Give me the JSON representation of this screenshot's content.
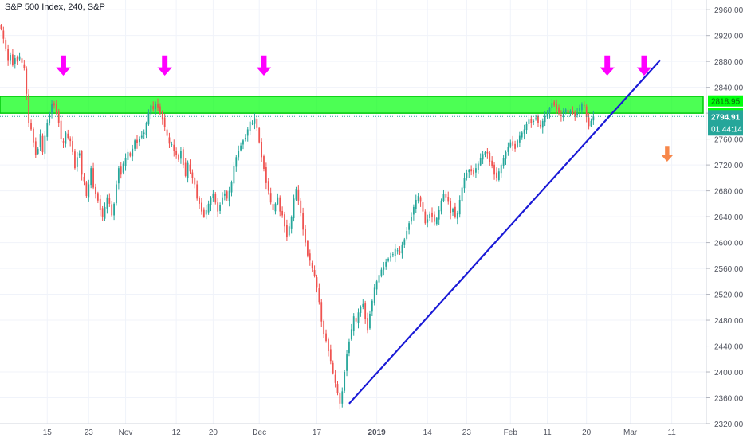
{
  "header": {
    "symbol_title": "S&P 500 Index, 240, S&P"
  },
  "colors": {
    "up": "#26a69a",
    "down": "#ef5350",
    "grid": "#f0f3fa",
    "axis_text": "#50535e",
    "zone_fill": "#00ff0c",
    "zone_border": "#00c80a",
    "trendline": "#1a1ad6",
    "arrow_top": "#ff00ff",
    "arrow_down": "#f7874a",
    "price_badge": "#26a69a"
  },
  "chart_data": {
    "type": "candlestick",
    "title": "S&P 500 Index, 240, S&P",
    "ylim": [
      2320,
      2975
    ],
    "y_ticks": [
      2320,
      2360,
      2400,
      2440,
      2480,
      2520,
      2560,
      2600,
      2640,
      2680,
      2720,
      2760,
      2800,
      2840,
      2880,
      2920,
      2960
    ],
    "x_ticks": [
      {
        "label": "15",
        "i": 20
      },
      {
        "label": "23",
        "i": 38
      },
      {
        "label": "Nov",
        "i": 54
      },
      {
        "label": "12",
        "i": 76
      },
      {
        "label": "20",
        "i": 92
      },
      {
        "label": "Dec",
        "i": 112
      },
      {
        "label": "17",
        "i": 137
      },
      {
        "label": "2019",
        "i": 163
      },
      {
        "label": "14",
        "i": 185
      },
      {
        "label": "23",
        "i": 202
      },
      {
        "label": "Feb",
        "i": 221
      },
      {
        "label": "11",
        "i": 237
      },
      {
        "label": "20",
        "i": 254
      },
      {
        "label": "Mar",
        "i": 273
      },
      {
        "label": "11",
        "i": 291
      }
    ],
    "x_index_range": [
      -0.5,
      306
    ],
    "last_price": 2794.91,
    "countdown": "01:44:14",
    "zone_labels": [
      2818.95,
      2800.0
    ],
    "resistance_zone": {
      "top": 2826,
      "bottom": 2800
    },
    "trendline": {
      "from": {
        "i": 151,
        "price": 2351
      },
      "to": {
        "i": 286,
        "price": 2882
      }
    },
    "top_arrows_at": [
      27,
      71,
      114,
      263,
      279
    ],
    "down_arrow_at": 289,
    "closes": [
      2930,
      2915,
      2900,
      2882,
      2890,
      2875,
      2885,
      2880,
      2888,
      2878,
      2870,
      2830,
      2785,
      2775,
      2755,
      2735,
      2745,
      2768,
      2740,
      2765,
      2785,
      2800,
      2815,
      2812,
      2800,
      2785,
      2760,
      2755,
      2770,
      2762,
      2757,
      2740,
      2715,
      2732,
      2738,
      2705,
      2695,
      2672,
      2690,
      2715,
      2685,
      2675,
      2665,
      2650,
      2640,
      2655,
      2670,
      2660,
      2642,
      2660,
      2690,
      2715,
      2705,
      2722,
      2730,
      2740,
      2734,
      2745,
      2758,
      2754,
      2760,
      2765,
      2770,
      2785,
      2800,
      2812,
      2806,
      2814,
      2809,
      2800,
      2790,
      2778,
      2765,
      2753,
      2752,
      2742,
      2735,
      2728,
      2742,
      2720,
      2703,
      2723,
      2710,
      2700,
      2690,
      2668,
      2660,
      2648,
      2640,
      2650,
      2660,
      2670,
      2676,
      2662,
      2648,
      2658,
      2670,
      2676,
      2668,
      2680,
      2693,
      2718,
      2732,
      2742,
      2750,
      2758,
      2762,
      2775,
      2787,
      2785,
      2792,
      2777,
      2755,
      2732,
      2714,
      2692,
      2680,
      2662,
      2650,
      2660,
      2670,
      2648,
      2642,
      2625,
      2608,
      2625,
      2640,
      2668,
      2683,
      2665,
      2645,
      2620,
      2600,
      2580,
      2572,
      2560,
      2548,
      2530,
      2508,
      2478,
      2458,
      2448,
      2432,
      2417,
      2398,
      2383,
      2368,
      2351,
      2370,
      2400,
      2427,
      2447,
      2466,
      2486,
      2478,
      2492,
      2500,
      2505,
      2482,
      2465,
      2490,
      2510,
      2530,
      2540,
      2550,
      2558,
      2562,
      2570,
      2575,
      2578,
      2582,
      2590,
      2588,
      2584,
      2596,
      2605,
      2618,
      2630,
      2640,
      2655,
      2666,
      2672,
      2663,
      2648,
      2630,
      2636,
      2644,
      2640,
      2632,
      2638,
      2650,
      2665,
      2675,
      2670,
      2663,
      2645,
      2652,
      2640,
      2646,
      2666,
      2685,
      2700,
      2708,
      2712,
      2710,
      2705,
      2715,
      2722,
      2730,
      2737,
      2740,
      2738,
      2725,
      2718,
      2705,
      2700,
      2710,
      2720,
      2730,
      2740,
      2748,
      2755,
      2750,
      2745,
      2758,
      2765,
      2770,
      2775,
      2783,
      2790,
      2785,
      2788,
      2792,
      2785,
      2780,
      2788,
      2795,
      2800,
      2808,
      2816,
      2812,
      2806,
      2800,
      2796,
      2803,
      2806,
      2800,
      2803,
      2799,
      2795,
      2800,
      2808,
      2815,
      2812,
      2794,
      2780,
      2788,
      2794.91
    ]
  }
}
